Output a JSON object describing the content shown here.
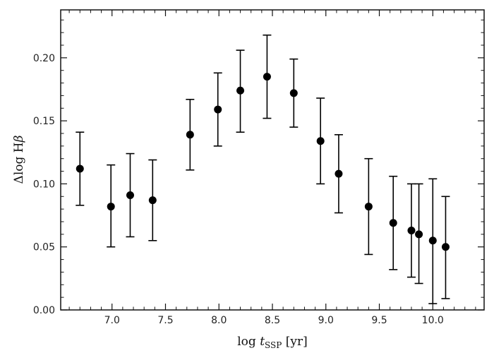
{
  "chart_data": {
    "type": "scatter",
    "title": "",
    "xlabel": {
      "prefix": "log ",
      "var": "t",
      "sub": "SSP",
      "unit": " [yr]"
    },
    "ylabel": {
      "prefix": "Δlog H",
      "var": "β"
    },
    "xlim": [
      6.52,
      10.48
    ],
    "ylim": [
      0.0,
      0.238
    ],
    "xticks": [
      7.0,
      7.5,
      8.0,
      8.5,
      9.0,
      9.5,
      10.0
    ],
    "xtick_labels": [
      "7.0",
      "7.5",
      "8.0",
      "8.5",
      "9.0",
      "9.5",
      "10.0"
    ],
    "yticks": [
      0.0,
      0.05,
      0.1,
      0.15,
      0.2
    ],
    "ytick_labels": [
      "0.00",
      "0.05",
      "0.10",
      "0.15",
      "0.20"
    ],
    "grid": false,
    "legend": "none",
    "series": [
      {
        "points": [
          {
            "x": 6.7,
            "y": 0.112,
            "lo": 0.083,
            "hi": 0.141
          },
          {
            "x": 6.99,
            "y": 0.082,
            "lo": 0.05,
            "hi": 0.115
          },
          {
            "x": 7.17,
            "y": 0.091,
            "lo": 0.058,
            "hi": 0.124
          },
          {
            "x": 7.38,
            "y": 0.087,
            "lo": 0.055,
            "hi": 0.119
          },
          {
            "x": 7.73,
            "y": 0.139,
            "lo": 0.111,
            "hi": 0.167
          },
          {
            "x": 7.99,
            "y": 0.159,
            "lo": 0.13,
            "hi": 0.188
          },
          {
            "x": 8.2,
            "y": 0.174,
            "lo": 0.141,
            "hi": 0.206
          },
          {
            "x": 8.45,
            "y": 0.185,
            "lo": 0.152,
            "hi": 0.218
          },
          {
            "x": 8.7,
            "y": 0.172,
            "lo": 0.145,
            "hi": 0.199
          },
          {
            "x": 8.95,
            "y": 0.134,
            "lo": 0.1,
            "hi": 0.168
          },
          {
            "x": 9.12,
            "y": 0.108,
            "lo": 0.077,
            "hi": 0.139
          },
          {
            "x": 9.4,
            "y": 0.082,
            "lo": 0.044,
            "hi": 0.12
          },
          {
            "x": 9.63,
            "y": 0.069,
            "lo": 0.032,
            "hi": 0.106
          },
          {
            "x": 9.8,
            "y": 0.063,
            "lo": 0.026,
            "hi": 0.1
          },
          {
            "x": 9.87,
            "y": 0.06,
            "lo": 0.021,
            "hi": 0.1
          },
          {
            "x": 10.0,
            "y": 0.055,
            "lo": 0.005,
            "hi": 0.104
          },
          {
            "x": 10.12,
            "y": 0.05,
            "lo": 0.009,
            "hi": 0.09
          }
        ]
      }
    ]
  },
  "colors": {
    "marker": "#000000",
    "axis": "#111111",
    "background": "#ffffff"
  }
}
